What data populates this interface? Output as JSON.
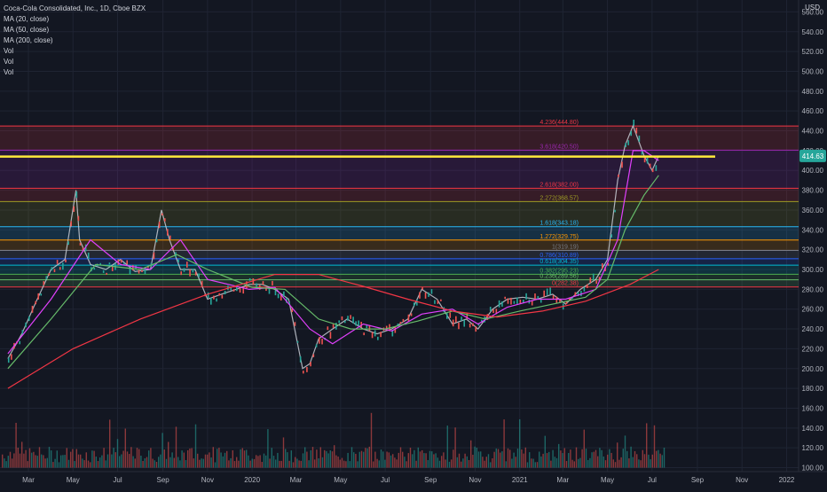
{
  "header": {
    "title": "Coca-Cola Consolidated, Inc., 1D, Cboe BZX",
    "indicators": [
      "MA (20, close)",
      "MA (50, close)",
      "MA (200, close)",
      "Vol",
      "Vol",
      "Vol"
    ],
    "currency": "USD"
  },
  "colors": {
    "background": "#131722",
    "grid": "#1f2433",
    "axis_text": "#b2b5be",
    "up": "#26a69a",
    "down": "#ef5350",
    "ma20": "#e040fb",
    "ma50": "#66bb6a",
    "ma200": "#f23645",
    "horizontal_line": "#ffeb3b",
    "price_badge": "#26a69a"
  },
  "chart_data": {
    "type": "line",
    "symbol": "Coca-Cola Consolidated, Inc.",
    "timeframe": "1D",
    "exchange": "Cboe BZX",
    "y_axis": {
      "ticks": [
        100,
        120,
        140,
        160,
        180,
        200,
        220,
        240,
        260,
        280,
        300,
        320,
        340,
        360,
        380,
        400,
        420,
        440,
        460,
        480,
        500,
        520,
        540,
        560
      ],
      "tick_labels": [
        "100.00",
        "120.00",
        "140.00",
        "160.00",
        "180.00",
        "200.00",
        "220.00",
        "240.00",
        "260.00",
        "280.00",
        "300.00",
        "320.00",
        "340.00",
        "360.00",
        "380.00",
        "400.00",
        "420.00",
        "440.00",
        "460.00",
        "480.00",
        "500.00",
        "520.00",
        "540.00",
        "560.00"
      ],
      "range": [
        96,
        572
      ],
      "unit": "USD"
    },
    "x_axis": {
      "tick_labels": [
        "Mar",
        "May",
        "Jul",
        "Sep",
        "Nov",
        "2020",
        "Mar",
        "May",
        "Jul",
        "Sep",
        "Nov",
        "2021",
        "Mar",
        "May",
        "Jul",
        "Sep",
        "Nov",
        "2022"
      ],
      "range": [
        "2019-03-01",
        "2022-01-15"
      ]
    },
    "last_price": 414.63,
    "last_price_label": "414.63",
    "price_series": {
      "dates": [
        "2019-02-01",
        "2019-02-20",
        "2019-03-10",
        "2019-04-01",
        "2019-04-20",
        "2019-05-05",
        "2019-05-10",
        "2019-05-25",
        "2019-06-15",
        "2019-07-05",
        "2019-07-25",
        "2019-08-15",
        "2019-08-30",
        "2019-09-10",
        "2019-09-25",
        "2019-10-15",
        "2019-11-01",
        "2019-11-20",
        "2019-12-10",
        "2019-12-28",
        "2020-01-15",
        "2020-02-01",
        "2020-02-20",
        "2020-03-10",
        "2020-03-20",
        "2020-04-01",
        "2020-04-20",
        "2020-05-10",
        "2020-06-01",
        "2020-06-20",
        "2020-07-10",
        "2020-08-01",
        "2020-08-20",
        "2020-09-10",
        "2020-10-01",
        "2020-10-20",
        "2020-11-05",
        "2020-11-25",
        "2020-12-15",
        "2021-01-05",
        "2021-01-25",
        "2021-02-15",
        "2021-03-05",
        "2021-03-25",
        "2021-04-15",
        "2021-05-01",
        "2021-05-15",
        "2021-05-25",
        "2021-06-05",
        "2021-06-20",
        "2021-07-01",
        "2021-07-10"
      ],
      "close": [
        210,
        235,
        265,
        300,
        310,
        380,
        330,
        305,
        300,
        310,
        298,
        300,
        360,
        330,
        300,
        300,
        270,
        275,
        280,
        285,
        285,
        280,
        270,
        200,
        205,
        230,
        240,
        250,
        240,
        235,
        240,
        250,
        280,
        270,
        245,
        250,
        240,
        260,
        270,
        272,
        270,
        275,
        265,
        280,
        290,
        310,
        390,
        425,
        445,
        415,
        400,
        414.63
      ]
    },
    "moving_averages": [
      {
        "name": "MA (20, close)",
        "dates": [
          "2019-02-01",
          "2019-04-01",
          "2019-05-25",
          "2019-07-05",
          "2019-08-15",
          "2019-09-25",
          "2019-11-01",
          "2019-12-28",
          "2020-02-01",
          "2020-03-20",
          "2020-04-20",
          "2020-06-01",
          "2020-07-10",
          "2020-08-20",
          "2020-10-01",
          "2020-11-05",
          "2020-12-15",
          "2021-01-25",
          "2021-03-05",
          "2021-04-15",
          "2021-05-15",
          "2021-06-05",
          "2021-06-20",
          "2021-07-10"
        ],
        "values": [
          215,
          270,
          330,
          305,
          300,
          330,
          290,
          280,
          282,
          240,
          225,
          245,
          238,
          255,
          260,
          245,
          262,
          270,
          270,
          280,
          330,
          420,
          420,
          410
        ]
      },
      {
        "name": "MA (50, close)",
        "dates": [
          "2019-02-01",
          "2019-04-01",
          "2019-06-01",
          "2019-08-01",
          "2019-09-20",
          "2019-11-01",
          "2020-01-01",
          "2020-02-15",
          "2020-04-01",
          "2020-05-15",
          "2020-07-01",
          "2020-08-15",
          "2020-10-01",
          "2020-11-15",
          "2021-01-01",
          "2021-02-15",
          "2021-04-01",
          "2021-05-01",
          "2021-05-25",
          "2021-06-20",
          "2021-07-10"
        ],
        "values": [
          200,
          250,
          305,
          300,
          315,
          300,
          282,
          280,
          250,
          240,
          240,
          248,
          258,
          250,
          258,
          265,
          272,
          290,
          340,
          375,
          395
        ]
      },
      {
        "name": "MA (200, close)",
        "dates": [
          "2019-02-01",
          "2019-05-01",
          "2019-08-01",
          "2019-11-01",
          "2020-02-01",
          "2020-04-01",
          "2020-06-01",
          "2020-08-01",
          "2020-10-01",
          "2020-12-01",
          "2021-02-01",
          "2021-04-01",
          "2021-06-01",
          "2021-07-10"
        ],
        "values": [
          180,
          220,
          250,
          275,
          295,
          295,
          283,
          270,
          258,
          252,
          258,
          268,
          285,
          300
        ]
      }
    ],
    "volume_scale_max": 180,
    "fibonacci_levels": [
      {
        "label": "4.236(444.80)",
        "value": 444.8,
        "color": "#f23645"
      },
      {
        "label": "3.618(420.50)",
        "value": 420.5,
        "color": "#9c27b0"
      },
      {
        "label": "2.618(382.00)",
        "value": 382.0,
        "color": "#f23645"
      },
      {
        "label": "2.272(368.57)",
        "value": 368.57,
        "color": "#9e9d24"
      },
      {
        "label": "1.618(343.18)",
        "value": 343.18,
        "color": "#29b6f6"
      },
      {
        "label": "1.272(329.75)",
        "value": 329.75,
        "color": "#ff9800"
      },
      {
        "label": "1(319.19)",
        "value": 319.19,
        "color": "#787b86"
      },
      {
        "label": "0.786(310.89)",
        "value": 310.89,
        "color": "#2962ff"
      },
      {
        "label": "0.618(304.35)",
        "value": 304.35,
        "color": "#00bcd4"
      },
      {
        "label": "0.382(295.23)",
        "value": 295.23,
        "color": "#4caf50"
      },
      {
        "label": "0.236(289.56)",
        "value": 289.56,
        "color": "#66bb6a"
      },
      {
        "label": "0(282.38)",
        "value": 282.38,
        "color": "#f23645"
      }
    ],
    "horizontal_line": {
      "value": 414.0
    },
    "grid": true,
    "legend_position": "top-left"
  }
}
